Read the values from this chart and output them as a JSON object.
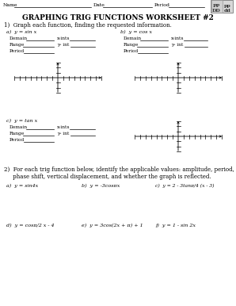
{
  "title": "GRAPHING TRIG FUNCTIONS WORKSHEET #2",
  "header_name": "Name",
  "header_date": "Date",
  "header_period": "Period",
  "section1_label": "1)  Graph each function, finding the requested information.",
  "section2_label": "2)  For each trig function below, identify the applicable values: amplitude, period,",
  "section2_label2": "     phase shift, vertical displacement, and whether the graph is reflected.",
  "func_a": "a)  y = sin x",
  "func_b": "b)  y = cos x",
  "func_c": "c)  y = tan x",
  "funcs_2a": "a)  y = sin4x",
  "funcs_2b": "b)  y = -3cosπx",
  "funcs_2c": "c)  y = 2 - 3tanπ/4 (x - 3)",
  "funcs_2d": "d)  y = cosπ/2 x - 4",
  "funcs_2e": "e)  y = 3cos(2x + π) + 1",
  "funcs_2f": "f)  y = 1 - sin 2x",
  "bg_color": "#ffffff",
  "text_color": "#000000",
  "line_color": "#000000",
  "gray_line": "#666666"
}
